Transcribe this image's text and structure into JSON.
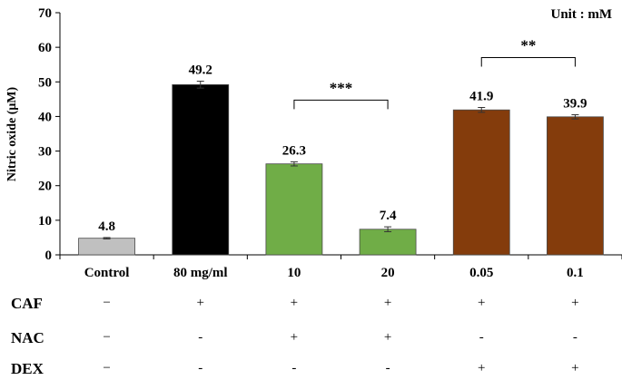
{
  "chart_data": {
    "type": "bar",
    "ylabel": "Nitric oxide (μM)",
    "unit_note": "Unit : mM",
    "ylim": [
      0,
      70
    ],
    "yticks": [
      0,
      10,
      20,
      30,
      40,
      50,
      60,
      70
    ],
    "grid": false,
    "categories": [
      "Control",
      "80 mg/ml",
      "10",
      "20",
      "0.05",
      "0.1"
    ],
    "values": [
      4.8,
      49.2,
      26.3,
      7.4,
      41.9,
      39.9
    ],
    "errors": [
      0.2,
      1.0,
      0.6,
      0.7,
      0.7,
      0.6
    ],
    "data_labels": [
      "4.8",
      "49.2",
      "26.3",
      "7.4",
      "41.9",
      "39.9"
    ],
    "colors": [
      "#c0c0c0",
      "#000000",
      "#70ad47",
      "#70ad47",
      "#843c0c",
      "#843c0c"
    ],
    "significance": [
      {
        "from": 2,
        "to": 3,
        "label": "***"
      },
      {
        "from": 4,
        "to": 5,
        "label": "**"
      }
    ],
    "treatment_rows": [
      {
        "label": "CAF",
        "signs": [
          "−",
          "+",
          "+",
          "+",
          "+",
          "+"
        ]
      },
      {
        "label": "NAC",
        "signs": [
          "−",
          "-",
          "+",
          "+",
          "-",
          "-"
        ]
      },
      {
        "label": "DEX",
        "signs": [
          "−",
          "-",
          "-",
          "-",
          "+",
          "+"
        ]
      }
    ]
  }
}
